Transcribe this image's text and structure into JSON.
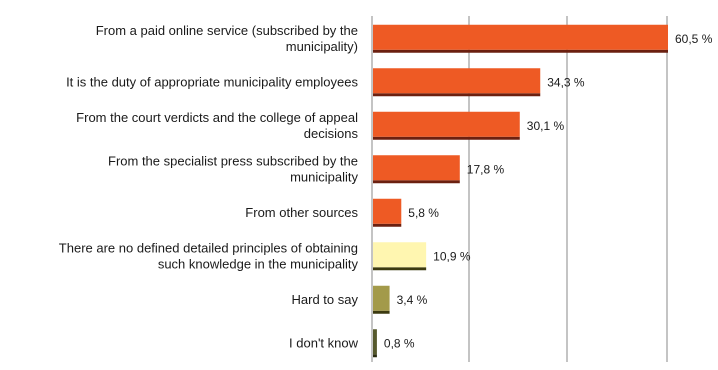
{
  "chart_data": {
    "type": "bar",
    "orientation": "horizontal",
    "title": "",
    "xlabel": "",
    "ylabel": "",
    "xlim": [
      0,
      60.5
    ],
    "grid": "vertical",
    "legend": "none",
    "colors": {
      "orange": "#ee5a24",
      "orange_shadow": "#6b2010",
      "pale_yellow": "#fff6b0",
      "pale_yellow_shadow": "#3c3a10",
      "olive": "#a39a4a",
      "olive_shadow": "#3c3a10",
      "dark_olive": "#55582c",
      "dark_olive_shadow": "#2a2c10",
      "gridline": "#8a8a8a",
      "axis": "#8a8a8a"
    },
    "categories": [
      [
        "From a paid online service (subscribed by the",
        "municipality)"
      ],
      [
        "It is the duty of appropriate municipality employees"
      ],
      [
        "From the court verdicts and the college of appeal",
        "decisions"
      ],
      [
        "From the specialist press subscribed by the",
        "municipality"
      ],
      [
        "From other sources"
      ],
      [
        "There are no defined detailed principles of obtaining",
        "such knowledge in the municipality"
      ],
      [
        "Hard to say"
      ],
      [
        "I don't know"
      ]
    ],
    "values": [
      60.5,
      34.3,
      30.1,
      17.8,
      5.8,
      10.9,
      3.4,
      0.8
    ],
    "value_labels": [
      "60,5 %",
      "34,3 %",
      "30,1 %",
      "17,8 %",
      "5,8 %",
      "10,9 %",
      "3,4 %",
      "0,8 %"
    ],
    "bar_colors": [
      "orange",
      "orange",
      "orange",
      "orange",
      "orange",
      "pale_yellow",
      "olive",
      "dark_olive"
    ]
  }
}
